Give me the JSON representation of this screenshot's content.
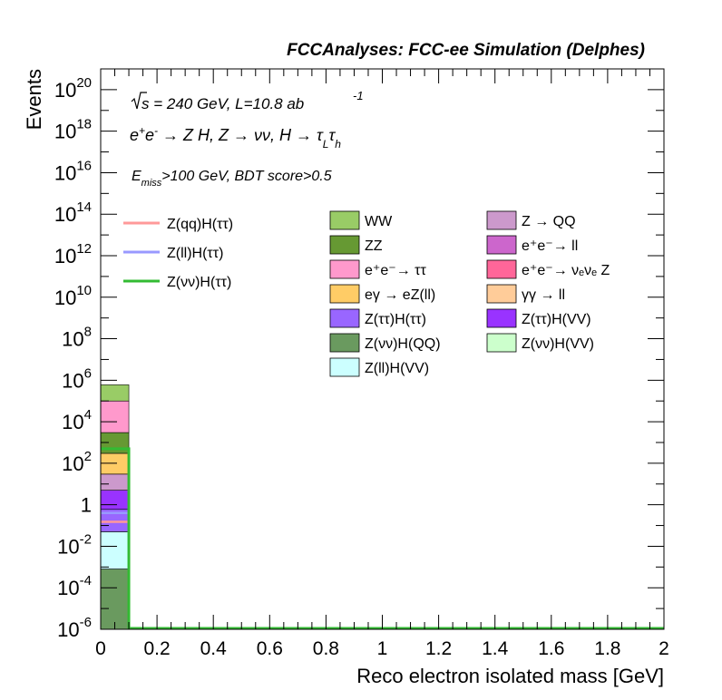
{
  "chart_data": {
    "type": "bar",
    "title": "FCCAnalyses: FCC-ee Simulation (Delphes)",
    "xlabel": "Reco electron isolated mass [GeV]",
    "ylabel": "Events",
    "xlim": [
      0,
      2
    ],
    "ylim": [
      1e-06,
      1e+21
    ],
    "yscale": "log",
    "x_ticks": [
      "0",
      "0.2",
      "0.4",
      "0.6",
      "0.8",
      "1",
      "1.2",
      "1.4",
      "1.6",
      "1.8",
      "2"
    ],
    "y_ticks": [
      {
        "mant": "10",
        "exp": "20",
        "value": 1e+20
      },
      {
        "mant": "10",
        "exp": "18",
        "value": 1e+18
      },
      {
        "mant": "10",
        "exp": "16",
        "value": 1e+16
      },
      {
        "mant": "10",
        "exp": "14",
        "value": 100000000000000.0
      },
      {
        "mant": "10",
        "exp": "12",
        "value": 1000000000000.0
      },
      {
        "mant": "10",
        "exp": "10",
        "value": 10000000000.0
      },
      {
        "mant": "10",
        "exp": "8",
        "value": 100000000.0
      },
      {
        "mant": "10",
        "exp": "6",
        "value": 1000000.0
      },
      {
        "mant": "10",
        "exp": "4",
        "value": 10000.0
      },
      {
        "mant": "10",
        "exp": "2",
        "value": 100.0
      },
      {
        "mant": "1",
        "exp": "",
        "value": 1
      },
      {
        "mant": "10",
        "exp": "-2",
        "value": 0.01
      },
      {
        "mant": "10",
        "exp": "-4",
        "value": 0.0001
      },
      {
        "mant": "10",
        "exp": "-6",
        "value": 1e-06
      }
    ],
    "annotations": {
      "sqrts": "s = 240 GeV, L=10.8 ab",
      "sqrts_exp": "-1",
      "process": "e⁺e⁻ → Z H, Z → νν, H → τ_L τ_h",
      "selection": "E_miss>100 GeV, BDT score>0.5"
    },
    "bin_edges": [
      0,
      0.1
    ],
    "stack": [
      {
        "name": "Z(νν)H(QQ)",
        "color": "#6a9a5f",
        "top": 0.0008
      },
      {
        "name": "Z(ll)H(VV)",
        "color": "#ccffff",
        "top": 0.05
      },
      {
        "name": "Z(ττ)H(ττ)",
        "color": "#9966ff",
        "top": 0.6
      },
      {
        "name": "Z(ττ)H(VV)",
        "color": "#9933ff",
        "top": 5
      },
      {
        "name": "Z → QQ",
        "color": "#cc99cc",
        "top": 30
      },
      {
        "name": "eγ → eZ(ll)",
        "color": "#ffcc66",
        "top": 300
      },
      {
        "name": "ZZ",
        "color": "#669933",
        "top": 3000
      },
      {
        "name": "e⁺e⁻→ ττ",
        "color": "#ff99cc",
        "top": 100000
      },
      {
        "name": "WW",
        "color": "#99cc66",
        "top": 600000
      }
    ],
    "lines": [
      {
        "name": "Z(qq)H(ττ)",
        "color": "#ff9999",
        "value": 0.15
      },
      {
        "name": "Z(ll)H(ττ)",
        "color": "#9999ff",
        "value": 0.4
      },
      {
        "name": "Z(νν)H(ττ)",
        "color": "#33bb33",
        "value": 500
      }
    ],
    "legend_lines": [
      {
        "label": "Z(qq)H(ττ)",
        "color": "#ff9999"
      },
      {
        "label": "Z(ll)H(ττ)",
        "color": "#9999ff"
      },
      {
        "label": "Z(νν)H(ττ)",
        "color": "#33bb33"
      }
    ],
    "legend_col1": [
      {
        "label": "WW",
        "color": "#99cc66"
      },
      {
        "label": "ZZ",
        "color": "#669933"
      },
      {
        "label": "e⁺e⁻→ ττ",
        "color": "#ff99cc"
      },
      {
        "label": "eγ → eZ(ll)",
        "color": "#ffcc66"
      },
      {
        "label": "Z(ττ)H(ττ)",
        "color": "#9966ff"
      },
      {
        "label": "Z(νν)H(QQ)",
        "color": "#6a9a5f"
      },
      {
        "label": "Z(ll)H(VV)",
        "color": "#ccffff"
      }
    ],
    "legend_col2": [
      {
        "label": "Z → QQ",
        "color": "#cc99cc"
      },
      {
        "label": "e⁺e⁻→ ll",
        "color": "#cc66cc"
      },
      {
        "label": "e⁺e⁻→ νₑνₑ Z",
        "color": "#ff6699"
      },
      {
        "label": "γγ → ll",
        "color": "#ffcc99"
      },
      {
        "label": "Z(ττ)H(VV)",
        "color": "#9933ff"
      },
      {
        "label": "Z(νν)H(VV)",
        "color": "#ccffcc"
      }
    ]
  }
}
